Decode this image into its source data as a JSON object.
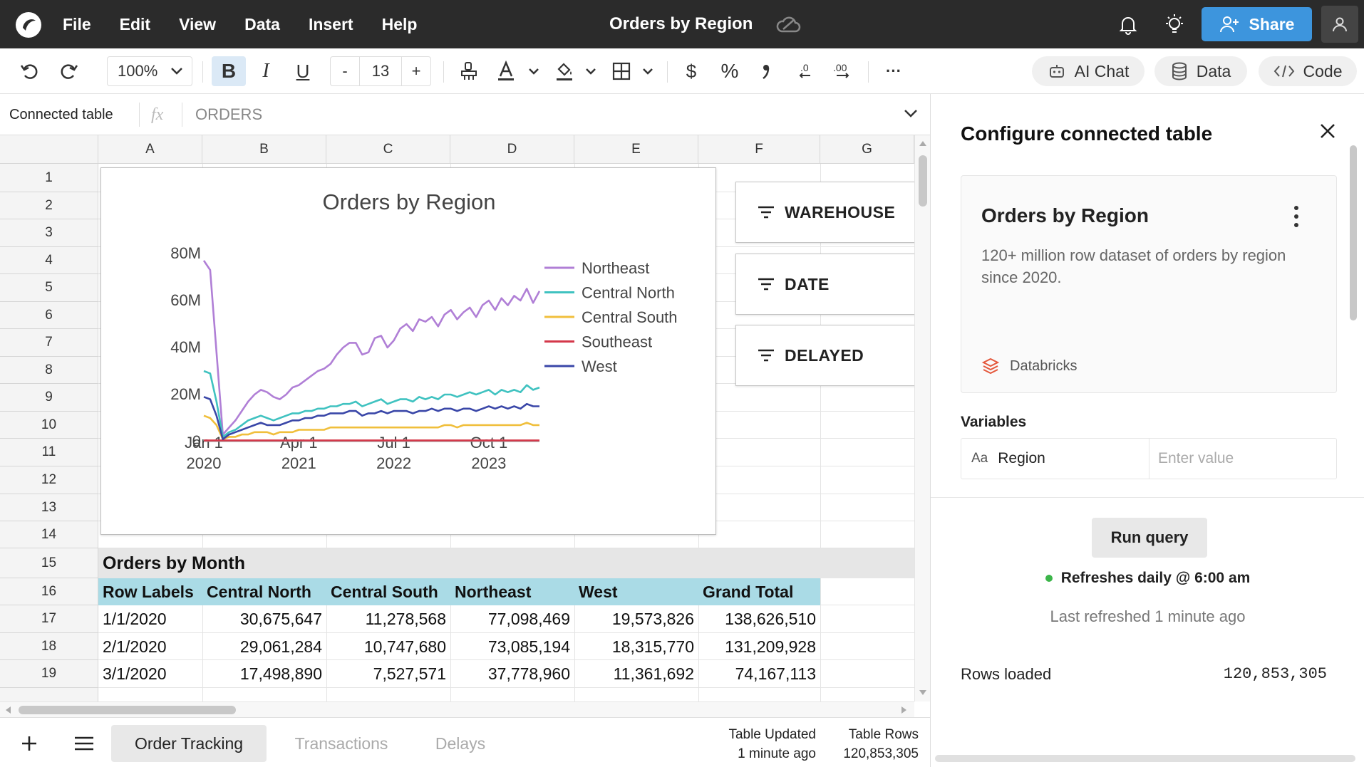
{
  "app": {
    "menu": [
      "File",
      "Edit",
      "View",
      "Data",
      "Insert",
      "Help"
    ],
    "document_title": "Orders by Region",
    "share_label": "Share"
  },
  "toolbar": {
    "zoom": "100%",
    "bold": "B",
    "italic": "I",
    "underline": "U",
    "font_size": "13",
    "font_size_minus": "-",
    "font_size_plus": "+",
    "currency": "$",
    "percent": "%",
    "more": "···",
    "ai_chat_label": "AI Chat",
    "data_label": "Data",
    "code_label": "Code"
  },
  "formula_bar": {
    "cell_ref": "Connected table",
    "fx": "fx",
    "formula": "ORDERS"
  },
  "grid": {
    "columns": [
      "A",
      "B",
      "C",
      "D",
      "E",
      "F",
      "G"
    ],
    "rows": [
      "1",
      "2",
      "3",
      "4",
      "5",
      "6",
      "7",
      "8",
      "9",
      "10",
      "11",
      "12",
      "13",
      "14",
      "15",
      "16",
      "17",
      "18",
      "19"
    ],
    "table_title": "Orders by Month",
    "table_headers": [
      "Row Labels",
      "Central North",
      "Central South",
      "Northeast",
      "West",
      "Grand Total"
    ],
    "table_rows": [
      [
        "1/1/2020",
        "30,675,647",
        "11,278,568",
        "77,098,469",
        "19,573,826",
        "138,626,510"
      ],
      [
        "2/1/2020",
        "29,061,284",
        "10,747,680",
        "73,085,194",
        "18,315,770",
        "131,209,928"
      ],
      [
        "3/1/2020",
        "17,498,890",
        "7,527,571",
        "37,778,960",
        "11,361,692",
        "74,167,113"
      ]
    ]
  },
  "filters": [
    "WAREHOUSE",
    "DATE",
    "DELAYED"
  ],
  "chart_data": {
    "type": "line",
    "title": "Orders by Region",
    "x_tick_labels": [
      [
        "Jan 1",
        "2020"
      ],
      [
        "Apr 1",
        "2021"
      ],
      [
        "Jul 1",
        "2022"
      ],
      [
        "Oct 1",
        "2023"
      ]
    ],
    "y_tick_labels": [
      "0",
      "20M",
      "40M",
      "60M",
      "80M"
    ],
    "ylim": [
      0,
      80
    ],
    "y_unit": "M",
    "x_range": [
      "2020-01",
      "2024-06"
    ],
    "legend_position": "right",
    "grid": false,
    "series": [
      {
        "name": "Northeast",
        "color": "#b07fd6",
        "values": [
          77,
          73,
          38,
          3,
          6,
          9,
          13,
          17,
          20,
          22,
          21,
          19,
          18,
          20,
          23,
          24,
          26,
          28,
          30,
          31,
          33,
          37,
          40,
          42,
          42,
          37,
          38,
          44,
          45,
          40,
          43,
          48,
          50,
          47,
          52,
          51,
          53,
          49,
          54,
          56,
          52,
          55,
          57,
          53,
          58,
          60,
          56,
          61,
          58,
          62,
          60,
          65,
          59,
          64
        ]
      },
      {
        "name": "Central North",
        "color": "#3fc2c0",
        "values": [
          30,
          29,
          17,
          2,
          4,
          5,
          7,
          9,
          10,
          11,
          10,
          9,
          10,
          11,
          12,
          12,
          13,
          13,
          14,
          14,
          15,
          15,
          16,
          16,
          17,
          15,
          16,
          17,
          18,
          16,
          17,
          18,
          18,
          17,
          19,
          18,
          19,
          18,
          20,
          20,
          19,
          20,
          21,
          20,
          21,
          22,
          20,
          22,
          21,
          22,
          21,
          24,
          22,
          23
        ]
      },
      {
        "name": "Central South",
        "color": "#f0bf3c",
        "values": [
          11,
          10,
          7,
          1,
          2,
          2,
          3,
          3,
          4,
          4,
          4,
          3,
          4,
          4,
          4,
          5,
          5,
          5,
          5,
          5,
          6,
          6,
          6,
          6,
          6,
          6,
          6,
          6,
          6,
          6,
          6,
          6,
          6,
          6,
          6,
          6,
          6,
          6,
          7,
          7,
          6,
          7,
          7,
          7,
          7,
          7,
          7,
          7,
          7,
          7,
          7,
          8,
          7,
          7
        ]
      },
      {
        "name": "Southeast",
        "color": "#d4384a",
        "values": [
          0.5,
          0.5,
          0.5,
          0.5,
          0.5,
          0.5,
          0.5,
          0.5,
          0.5,
          0.5,
          0.5,
          0.5,
          0.5,
          0.5,
          0.5,
          0.5,
          0.5,
          0.5,
          0.5,
          0.5,
          0.5,
          0.5,
          0.5,
          0.5,
          0.5,
          0.5,
          0.5,
          0.5,
          0.5,
          0.5,
          0.5,
          0.5,
          0.5,
          0.5,
          0.5,
          0.5,
          0.5,
          0.5,
          0.5,
          0.5,
          0.5,
          0.5,
          0.5,
          0.5,
          0.5,
          0.5,
          0.5,
          0.5,
          0.5,
          0.5,
          0.5,
          0.5,
          0.5,
          0.5
        ]
      },
      {
        "name": "West",
        "color": "#3a47a8",
        "values": [
          19,
          18,
          11,
          1,
          3,
          4,
          5,
          6,
          7,
          8,
          7,
          7,
          7,
          8,
          9,
          9,
          10,
          10,
          11,
          11,
          12,
          12,
          12,
          13,
          13,
          11,
          12,
          12,
          13,
          12,
          13,
          13,
          13,
          12,
          13,
          13,
          14,
          13,
          14,
          14,
          13,
          14,
          14,
          13,
          14,
          15,
          14,
          15,
          14,
          15,
          14,
          16,
          15,
          15
        ]
      }
    ]
  },
  "panel": {
    "title": "Configure connected table",
    "card_title": "Orders by Region",
    "card_description": "120+ million row dataset of orders by region since 2020.",
    "source": "Databricks",
    "variables_label": "Variables",
    "variable_type_glyph": "Aa",
    "variable_name": "Region",
    "variable_placeholder": "Enter value",
    "run_label": "Run query",
    "refresh_text": "Refreshes daily @ 6:00 am",
    "last_refreshed": "Last refreshed 1 minute ago",
    "rows_loaded_label": "Rows loaded",
    "rows_loaded_value": "120,853,305"
  },
  "bottom": {
    "tabs": [
      "Order Tracking",
      "Transactions",
      "Delays"
    ],
    "status_updated_label": "Table Updated",
    "status_updated_value": "1 minute ago",
    "status_rows_label": "Table Rows",
    "status_rows_value": "120,853,305"
  }
}
